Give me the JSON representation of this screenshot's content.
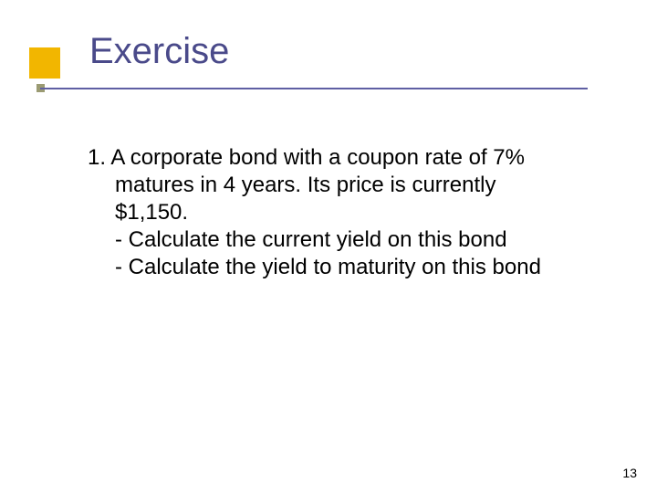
{
  "title": "Exercise",
  "body": {
    "item_number": "1.",
    "problem_line1": "A corporate bond with a coupon rate of 7%",
    "problem_line2": "matures in 4 years. Its price is currently",
    "problem_line3": "$1,150.",
    "bullet1": "- Calculate the current yield on this bond",
    "bullet2": "- Calculate the yield to maturity on this bond"
  },
  "page_number": "13",
  "colors": {
    "accent_square": "#f2b600",
    "title_rule": "#5f5fa3",
    "rule_endcap": "#9b9b73",
    "title_text": "#4a4a8a",
    "body_text": "#000000",
    "background": "#ffffff"
  },
  "fonts": {
    "title_family": "Verdana",
    "title_size_pt": 40,
    "body_family": "Tahoma",
    "body_size_pt": 24,
    "pagenum_size_pt": 14
  }
}
